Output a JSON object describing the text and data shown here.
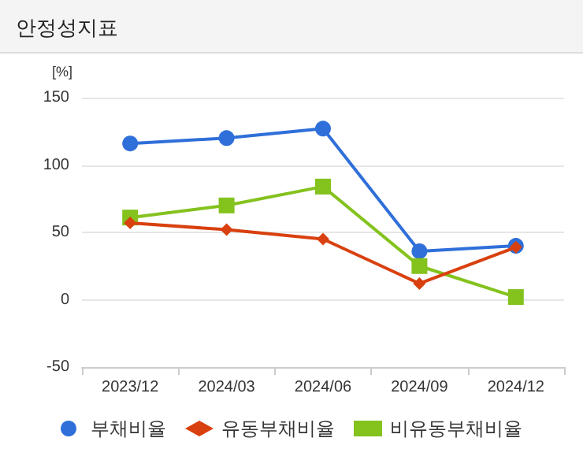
{
  "chart_data": {
    "type": "line",
    "title": "안정성지표",
    "ylabel": "[%]",
    "categories": [
      "2023/12",
      "2024/03",
      "2024/06",
      "2024/09",
      "2024/12"
    ],
    "series": [
      {
        "name": "부채비율",
        "color": "#2f6fd9",
        "marker": "circle",
        "values": [
          116,
          120,
          127,
          36,
          40
        ]
      },
      {
        "name": "유동부채비율",
        "color": "#d9400f",
        "marker": "diamond",
        "values": [
          57,
          52,
          45,
          12,
          39
        ]
      },
      {
        "name": "비유동부채비율",
        "color": "#84c21e",
        "marker": "square",
        "values": [
          61,
          70,
          84,
          25,
          2
        ]
      }
    ],
    "ylim": [
      -50,
      150
    ],
    "yticks": [
      -50,
      0,
      50,
      100,
      150
    ],
    "grid": "y",
    "legend": "bottom"
  }
}
